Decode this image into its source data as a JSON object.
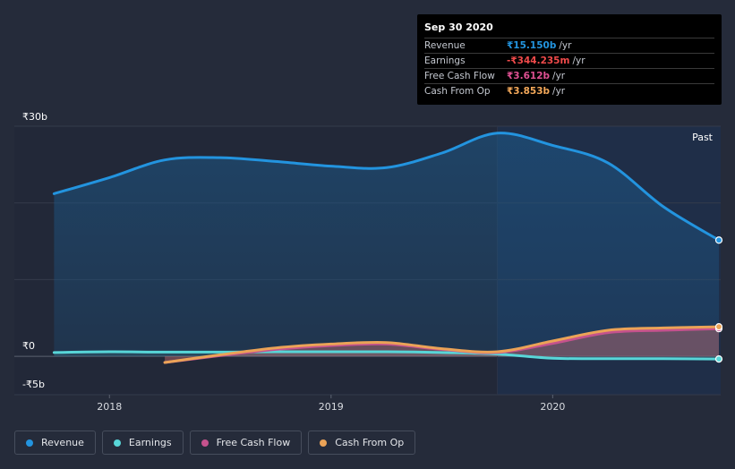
{
  "tooltip": {
    "date": "Sep 30 2020",
    "rows": [
      {
        "label": "Revenue",
        "value": "₹15.150b",
        "unit": "/yr",
        "color": "#2394df"
      },
      {
        "label": "Earnings",
        "value": "-₹344.235m",
        "unit": "/yr",
        "color": "#f04a4a"
      },
      {
        "label": "Free Cash Flow",
        "value": "₹3.612b",
        "unit": "/yr",
        "color": "#e05193"
      },
      {
        "label": "Cash From Op",
        "value": "₹3.853b",
        "unit": "/yr",
        "color": "#f4a95a"
      }
    ]
  },
  "legend": [
    {
      "label": "Revenue",
      "color": "#2394df"
    },
    {
      "label": "Earnings",
      "color": "#58d6d8"
    },
    {
      "label": "Free Cash Flow",
      "color": "#c5528d"
    },
    {
      "label": "Cash From Op",
      "color": "#eba357"
    }
  ],
  "chart_data": {
    "type": "area",
    "y_labels": [
      "₹30b",
      "₹0",
      "-₹5b"
    ],
    "ylim": [
      -5,
      30
    ],
    "xlim": [
      2017.7,
      2020.75
    ],
    "x_ticks": [
      {
        "x": 2018,
        "label": "2018"
      },
      {
        "x": 2019,
        "label": "2019"
      },
      {
        "x": 2020,
        "label": "2020"
      }
    ],
    "past_label": "Past",
    "past_start": 2019.75,
    "series": [
      {
        "name": "Revenue",
        "color": "#2394df",
        "x": [
          2017.75,
          2018.0,
          2018.25,
          2018.5,
          2018.75,
          2019.0,
          2019.25,
          2019.5,
          2019.75,
          2020.0,
          2020.25,
          2020.5,
          2020.75
        ],
        "values": [
          21.2,
          23.3,
          25.6,
          25.9,
          25.4,
          24.8,
          24.6,
          26.5,
          29.1,
          27.5,
          25.2,
          19.5,
          15.15
        ]
      },
      {
        "name": "Earnings",
        "color": "#58d6d8",
        "x": [
          2017.75,
          2018.0,
          2018.25,
          2018.5,
          2018.75,
          2019.0,
          2019.25,
          2019.5,
          2019.75,
          2020.0,
          2020.25,
          2020.5,
          2020.75
        ],
        "values": [
          0.5,
          0.6,
          0.55,
          0.55,
          0.6,
          0.6,
          0.6,
          0.5,
          0.3,
          -0.25,
          -0.3,
          -0.3,
          -0.344
        ]
      },
      {
        "name": "Free Cash Flow",
        "color": "#c5528d",
        "x": [
          2018.25,
          2018.5,
          2018.75,
          2019.0,
          2019.25,
          2019.5,
          2019.75,
          2020.0,
          2020.25,
          2020.5,
          2020.75
        ],
        "values": [
          -0.8,
          0.1,
          0.9,
          1.4,
          1.6,
          0.9,
          0.5,
          1.7,
          3.1,
          3.4,
          3.612
        ]
      },
      {
        "name": "Cash From Op",
        "color": "#eba357",
        "x": [
          2018.25,
          2018.5,
          2018.75,
          2019.0,
          2019.25,
          2019.5,
          2019.75,
          2020.0,
          2020.25,
          2020.5,
          2020.75
        ],
        "values": [
          -0.8,
          0.2,
          1.1,
          1.6,
          1.8,
          1.0,
          0.6,
          2.0,
          3.4,
          3.7,
          3.853
        ]
      }
    ]
  }
}
